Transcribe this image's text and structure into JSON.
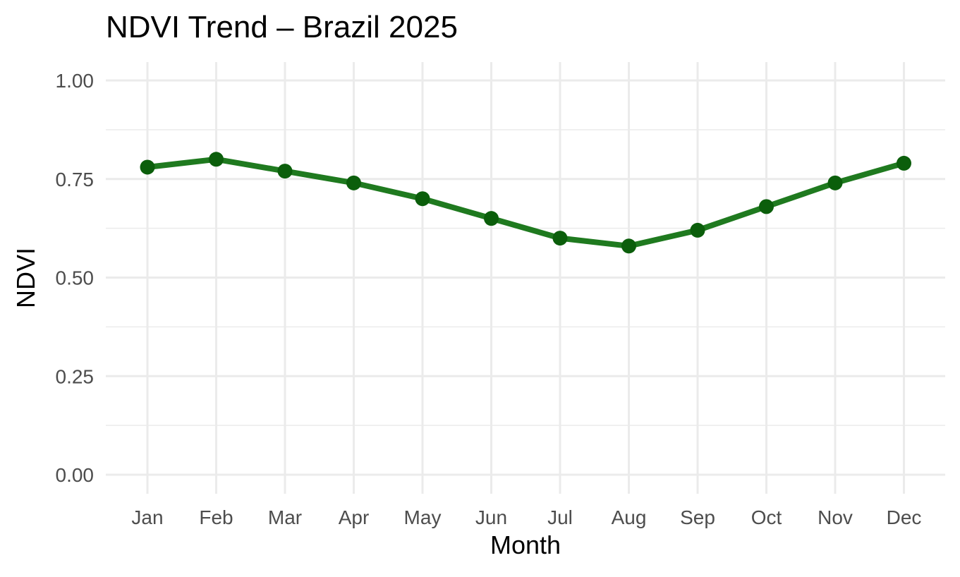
{
  "chart_data": {
    "type": "line",
    "title": "NDVI Trend – Brazil 2025",
    "xlabel": "Month",
    "ylabel": "NDVI",
    "categories": [
      "Jan",
      "Feb",
      "Mar",
      "Apr",
      "May",
      "Jun",
      "Jul",
      "Aug",
      "Sep",
      "Oct",
      "Nov",
      "Dec"
    ],
    "series": [
      {
        "values": [
          0.78,
          0.8,
          0.77,
          0.74,
          0.7,
          0.65,
          0.6,
          0.58,
          0.62,
          0.68,
          0.74,
          0.79
        ]
      }
    ],
    "ylim": [
      0,
      1
    ],
    "yticks": [
      "0.00",
      "0.25",
      "0.50",
      "0.75",
      "1.00"
    ],
    "grid": true,
    "legend": "none",
    "colors": {
      "line": "#1f7a1f",
      "points": "#0b5e0b",
      "grid": "#ebebeb",
      "tick_text": "#4d4d4d"
    }
  }
}
